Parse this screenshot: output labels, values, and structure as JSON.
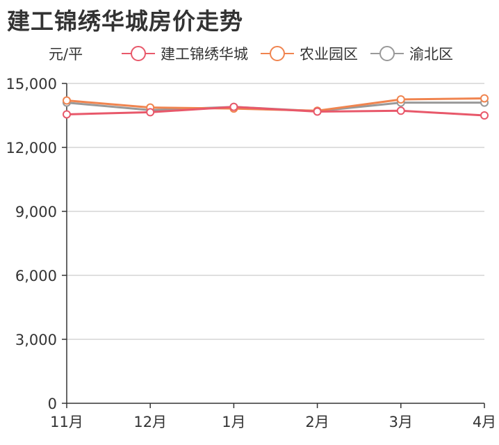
{
  "chart_data": {
    "type": "line",
    "title": "建工锦绣华城房价走势",
    "ylabel": "元/平",
    "categories": [
      "11月",
      "12月",
      "1月",
      "2月",
      "3月",
      "4月"
    ],
    "ylim": [
      0,
      15000
    ],
    "yticks": [
      "0",
      "3,000",
      "6,000",
      "9,000",
      "12,000",
      "15,000"
    ],
    "ytick_values": [
      0,
      3000,
      6000,
      9000,
      12000,
      15000
    ],
    "grid": true,
    "legend_position": "top",
    "series": [
      {
        "name": "建工锦绣华城",
        "color": "#e8586a",
        "values": [
          13550,
          13650,
          13900,
          13680,
          13720,
          13500
        ]
      },
      {
        "name": "农业园区",
        "color": "#f0844f",
        "values": [
          14200,
          13870,
          13820,
          13720,
          14250,
          14300
        ]
      },
      {
        "name": "渝北区",
        "color": "#999999",
        "values": [
          14100,
          13750,
          13900,
          13700,
          14100,
          14100
        ]
      }
    ]
  }
}
